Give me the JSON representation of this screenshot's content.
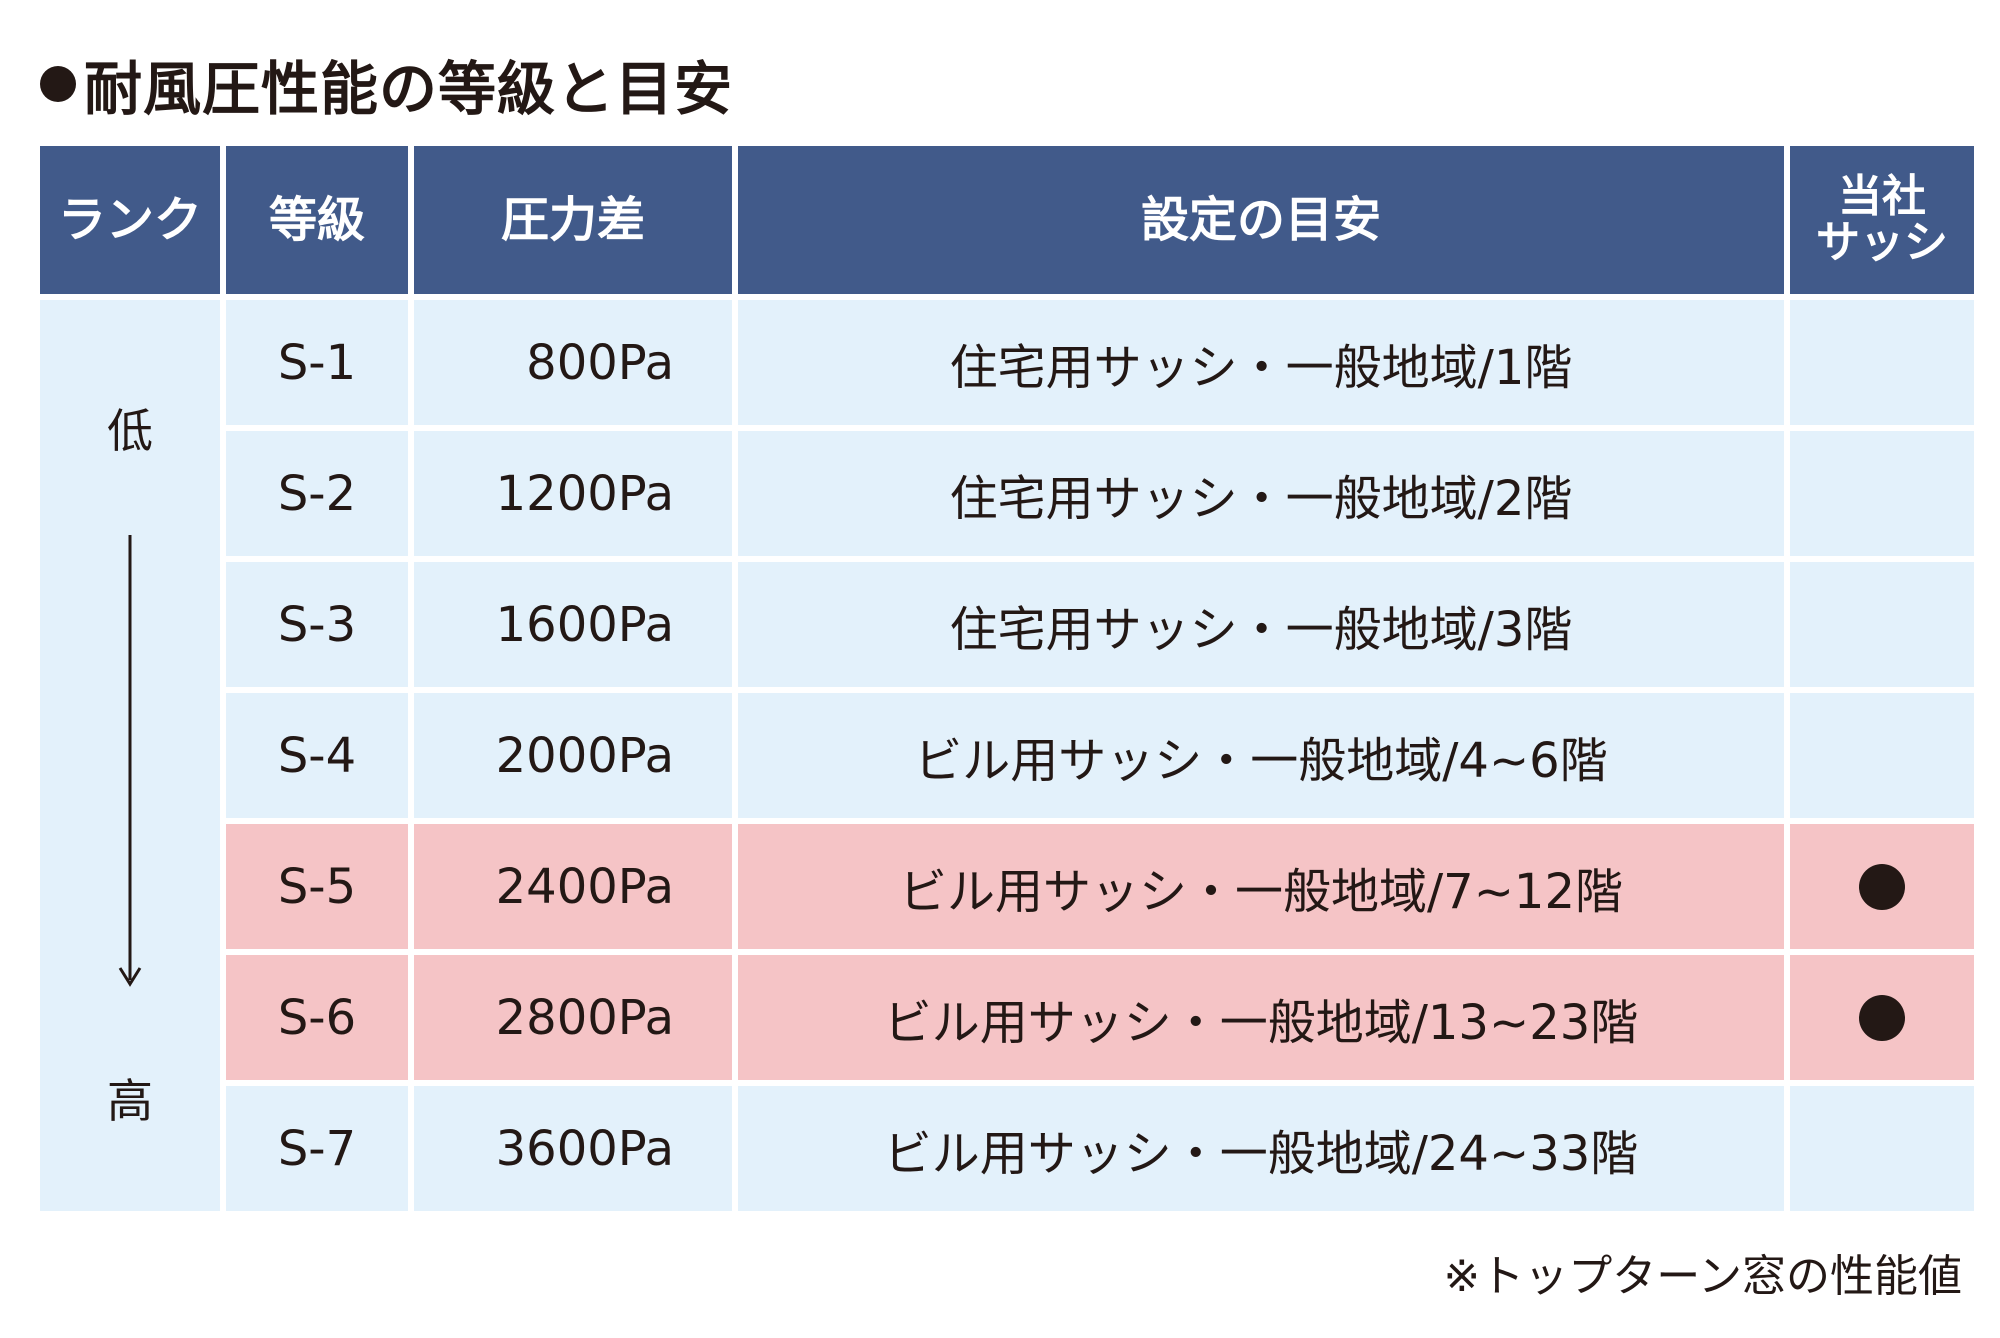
{
  "title": "耐風圧性能の等級と目安",
  "headers": {
    "rank": "ランク",
    "grade": "等級",
    "pressure": "圧力差",
    "guide": "設定の目安",
    "ours_line1": "当社",
    "ours_line2": "サッシ"
  },
  "rank": {
    "low": "低",
    "high": "高"
  },
  "rows": [
    {
      "grade": "S-1",
      "pressure": "800Pa",
      "guide": "住宅用サッシ・一般地域/1階",
      "ours": false
    },
    {
      "grade": "S-2",
      "pressure": "1200Pa",
      "guide": "住宅用サッシ・一般地域/2階",
      "ours": false
    },
    {
      "grade": "S-3",
      "pressure": "1600Pa",
      "guide": "住宅用サッシ・一般地域/3階",
      "ours": false
    },
    {
      "grade": "S-4",
      "pressure": "2000Pa",
      "guide": "ビル用サッシ・一般地域/4~6階",
      "ours": false
    },
    {
      "grade": "S-5",
      "pressure": "2400Pa",
      "guide": "ビル用サッシ・一般地域/7~12階",
      "ours": true
    },
    {
      "grade": "S-6",
      "pressure": "2800Pa",
      "guide": "ビル用サッシ・一般地域/13~23階",
      "ours": true
    },
    {
      "grade": "S-7",
      "pressure": "3600Pa",
      "guide": "ビル用サッシ・一般地域/24~33階",
      "ours": false
    }
  ],
  "footnote": "※トップターン窓の性能値",
  "colors": {
    "header_bg": "#415a8a",
    "row_bg": "#e3f1fb",
    "highlight_bg": "#f5c4c6",
    "text": "#231815"
  }
}
